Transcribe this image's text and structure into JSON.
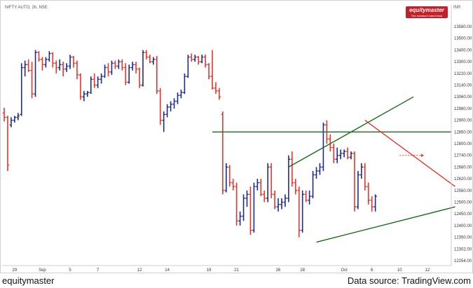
{
  "chart_data": {
    "type": "ohlc",
    "title": "NIFTY AUTO, 2h, NSE",
    "currency": "INR",
    "y_ticks": [
      13580,
      13500,
      13400,
      13300,
      13220,
      13140,
      13060,
      12980,
      12900,
      12850,
      12800,
      12740,
      12680,
      12620,
      12560,
      12500,
      12450,
      12400,
      12350,
      12302,
      12254
    ],
    "x_ticks": [
      {
        "label": "29",
        "bar": 3
      },
      {
        "label": "Sep",
        "bar": 11
      },
      {
        "label": "5",
        "bar": 19
      },
      {
        "label": "7",
        "bar": 27
      },
      {
        "label": "12",
        "bar": 39
      },
      {
        "label": "14",
        "bar": 47
      },
      {
        "label": "19",
        "bar": 59
      },
      {
        "label": "21",
        "bar": 67
      },
      {
        "label": "26",
        "bar": 79
      },
      {
        "label": "28",
        "bar": 86
      },
      {
        "label": "Oct",
        "bar": 98
      },
      {
        "label": "6",
        "bar": 106
      },
      {
        "label": "10",
        "bar": 114
      },
      {
        "label": "12",
        "bar": 122
      }
    ],
    "bars": [
      [
        12950,
        12985,
        12895,
        12920
      ],
      [
        12920,
        12930,
        12660,
        12690
      ],
      [
        12880,
        12920,
        12870,
        12900
      ],
      [
        12900,
        12930,
        12890,
        12920
      ],
      [
        12920,
        12950,
        12900,
        12930
      ],
      [
        12940,
        13290,
        12930,
        13260
      ],
      [
        13260,
        13310,
        13200,
        13280
      ],
      [
        13280,
        13320,
        13230,
        13240
      ],
      [
        13240,
        13300,
        13050,
        13080
      ],
      [
        13080,
        13400,
        13060,
        13380
      ],
      [
        13380,
        13390,
        13300,
        13320
      ],
      [
        13320,
        13340,
        13240,
        13280
      ],
      [
        13280,
        13340,
        13260,
        13320
      ],
      [
        13320,
        13390,
        13300,
        13370
      ],
      [
        13370,
        13380,
        13260,
        13290
      ],
      [
        13290,
        13310,
        13220,
        13260
      ],
      [
        13260,
        13320,
        13240,
        13280
      ],
      [
        13280,
        13300,
        13200,
        13250
      ],
      [
        13250,
        13290,
        13230,
        13270
      ],
      [
        13270,
        13360,
        13250,
        13340
      ],
      [
        13340,
        13350,
        13260,
        13290
      ],
      [
        13290,
        13310,
        13180,
        13210
      ],
      [
        13210,
        13220,
        13040,
        13060
      ],
      [
        13060,
        13100,
        13030,
        13080
      ],
      [
        13080,
        13100,
        13060,
        13090
      ],
      [
        13090,
        13200,
        13080,
        13180
      ],
      [
        13180,
        13220,
        13120,
        13140
      ],
      [
        13140,
        13200,
        13120,
        13180
      ],
      [
        13180,
        13220,
        13150,
        13200
      ],
      [
        13200,
        13280,
        13190,
        13260
      ],
      [
        13260,
        13290,
        13200,
        13230
      ],
      [
        13230,
        13310,
        13210,
        13290
      ],
      [
        13290,
        13310,
        13250,
        13270
      ],
      [
        13270,
        13320,
        13250,
        13300
      ],
      [
        13300,
        13320,
        13240,
        13260
      ],
      [
        13260,
        13290,
        13140,
        13160
      ],
      [
        13160,
        13280,
        13150,
        13260
      ],
      [
        13260,
        13300,
        13240,
        13280
      ],
      [
        13280,
        13300,
        13220,
        13250
      ],
      [
        13250,
        13260,
        13120,
        13140
      ],
      [
        13140,
        13400,
        13130,
        13380
      ],
      [
        13380,
        13400,
        13320,
        13340
      ],
      [
        13340,
        13360,
        13290,
        13300
      ],
      [
        13300,
        13340,
        13280,
        13320
      ],
      [
        13320,
        13350,
        13080,
        13100
      ],
      [
        13100,
        13120,
        12880,
        12900
      ],
      [
        12900,
        12960,
        12850,
        12940
      ],
      [
        12940,
        13010,
        12920,
        12990
      ],
      [
        12990,
        13030,
        12960,
        13010
      ],
      [
        13010,
        13050,
        12980,
        13030
      ],
      [
        13030,
        13090,
        13010,
        13070
      ],
      [
        13070,
        13110,
        13050,
        13090
      ],
      [
        13090,
        13220,
        13080,
        13200
      ],
      [
        13200,
        13360,
        13190,
        13340
      ],
      [
        13340,
        13370,
        13300,
        13320
      ],
      [
        13320,
        13360,
        13300,
        13340
      ],
      [
        13340,
        13350,
        13280,
        13300
      ],
      [
        13300,
        13360,
        13290,
        13340
      ],
      [
        13340,
        13360,
        13260,
        13280
      ],
      [
        13280,
        13290,
        13180,
        13200
      ],
      [
        13200,
        13400,
        13110,
        13120
      ],
      [
        13120,
        13160,
        13080,
        13100
      ],
      [
        13100,
        13120,
        13040,
        13060
      ],
      [
        12940,
        12960,
        12540,
        12560
      ],
      [
        12560,
        12700,
        12550,
        12680
      ],
      [
        12680,
        12690,
        12580,
        12600
      ],
      [
        12600,
        12620,
        12560,
        12580
      ],
      [
        12580,
        12600,
        12400,
        12420
      ],
      [
        12420,
        12460,
        12400,
        12440
      ],
      [
        12440,
        12540,
        12420,
        12520
      ],
      [
        12520,
        12560,
        12480,
        12540
      ],
      [
        12540,
        12580,
        12360,
        12380
      ],
      [
        12380,
        12600,
        12370,
        12580
      ],
      [
        12580,
        12620,
        12560,
        12600
      ],
      [
        12600,
        12620,
        12530,
        12540
      ],
      [
        12540,
        12560,
        12500,
        12520
      ],
      [
        12520,
        12700,
        12500,
        12680
      ],
      [
        12680,
        12700,
        12520,
        12540
      ],
      [
        12540,
        12560,
        12470,
        12480
      ],
      [
        12480,
        12520,
        12460,
        12490
      ],
      [
        12490,
        12520,
        12470,
        12500
      ],
      [
        12500,
        12540,
        12480,
        12520
      ],
      [
        12520,
        12740,
        12500,
        12720
      ],
      [
        12720,
        12760,
        12580,
        12600
      ],
      [
        12600,
        12620,
        12540,
        12560
      ],
      [
        12560,
        12580,
        12350,
        12380
      ],
      [
        12380,
        12560,
        12370,
        12540
      ],
      [
        12540,
        12560,
        12500,
        12510
      ],
      [
        12510,
        12560,
        12490,
        12530
      ],
      [
        12530,
        12660,
        12520,
        12640
      ],
      [
        12640,
        12680,
        12620,
        12660
      ],
      [
        12660,
        12700,
        12640,
        12680
      ],
      [
        12680,
        12890,
        12660,
        12880
      ],
      [
        12880,
        12900,
        12800,
        12820
      ],
      [
        12820,
        12840,
        12760,
        12780
      ],
      [
        12780,
        12800,
        12700,
        12720
      ],
      [
        12720,
        12780,
        12700,
        12740
      ],
      [
        12740,
        12770,
        12720,
        12750
      ],
      [
        12750,
        12770,
        12730,
        12760
      ],
      [
        12760,
        12780,
        12720,
        12730
      ],
      [
        12730,
        12760,
        12720,
        12750
      ],
      [
        12750,
        12760,
        12460,
        12480
      ],
      [
        12480,
        12660,
        12470,
        12640
      ],
      [
        12640,
        12700,
        12620,
        12680
      ],
      [
        12680,
        12700,
        12560,
        12580
      ],
      [
        12580,
        12600,
        12490,
        12510
      ],
      [
        12510,
        12530,
        12460,
        12480
      ],
      [
        12480,
        12540,
        12460,
        12530
      ]
    ],
    "bar_start_index": 0,
    "colors": {
      "up": "#1f2b8c",
      "down": "#e8362e",
      "support_trend": "#1a6b1a",
      "resistance_trend": "#e8362e",
      "axis_text": "#333333"
    },
    "annotations": [
      {
        "type": "horizontal_line",
        "price": 12850,
        "from_bar": 60,
        "color": "green"
      },
      {
        "type": "trend_line",
        "from": [
          82,
          12680
        ],
        "to": [
          118,
          13060
        ],
        "color": "green"
      },
      {
        "type": "trend_line",
        "from": [
          90,
          12330
        ],
        "to": [
          130,
          12480
        ],
        "color": "green"
      },
      {
        "type": "trend_line",
        "from": [
          104,
          12900
        ],
        "to": [
          130,
          12580
        ],
        "color": "red"
      },
      {
        "type": "arrow",
        "price": 12740,
        "from_bar": 114,
        "to_bar": 121,
        "color": "red",
        "style": "dashed"
      }
    ]
  },
  "branding": {
    "logo_name": "equitymaster",
    "logo_tagline": "The investor's best friend"
  },
  "footer": {
    "left": "equitymaster",
    "right": "Data source: TradingView.com"
  }
}
